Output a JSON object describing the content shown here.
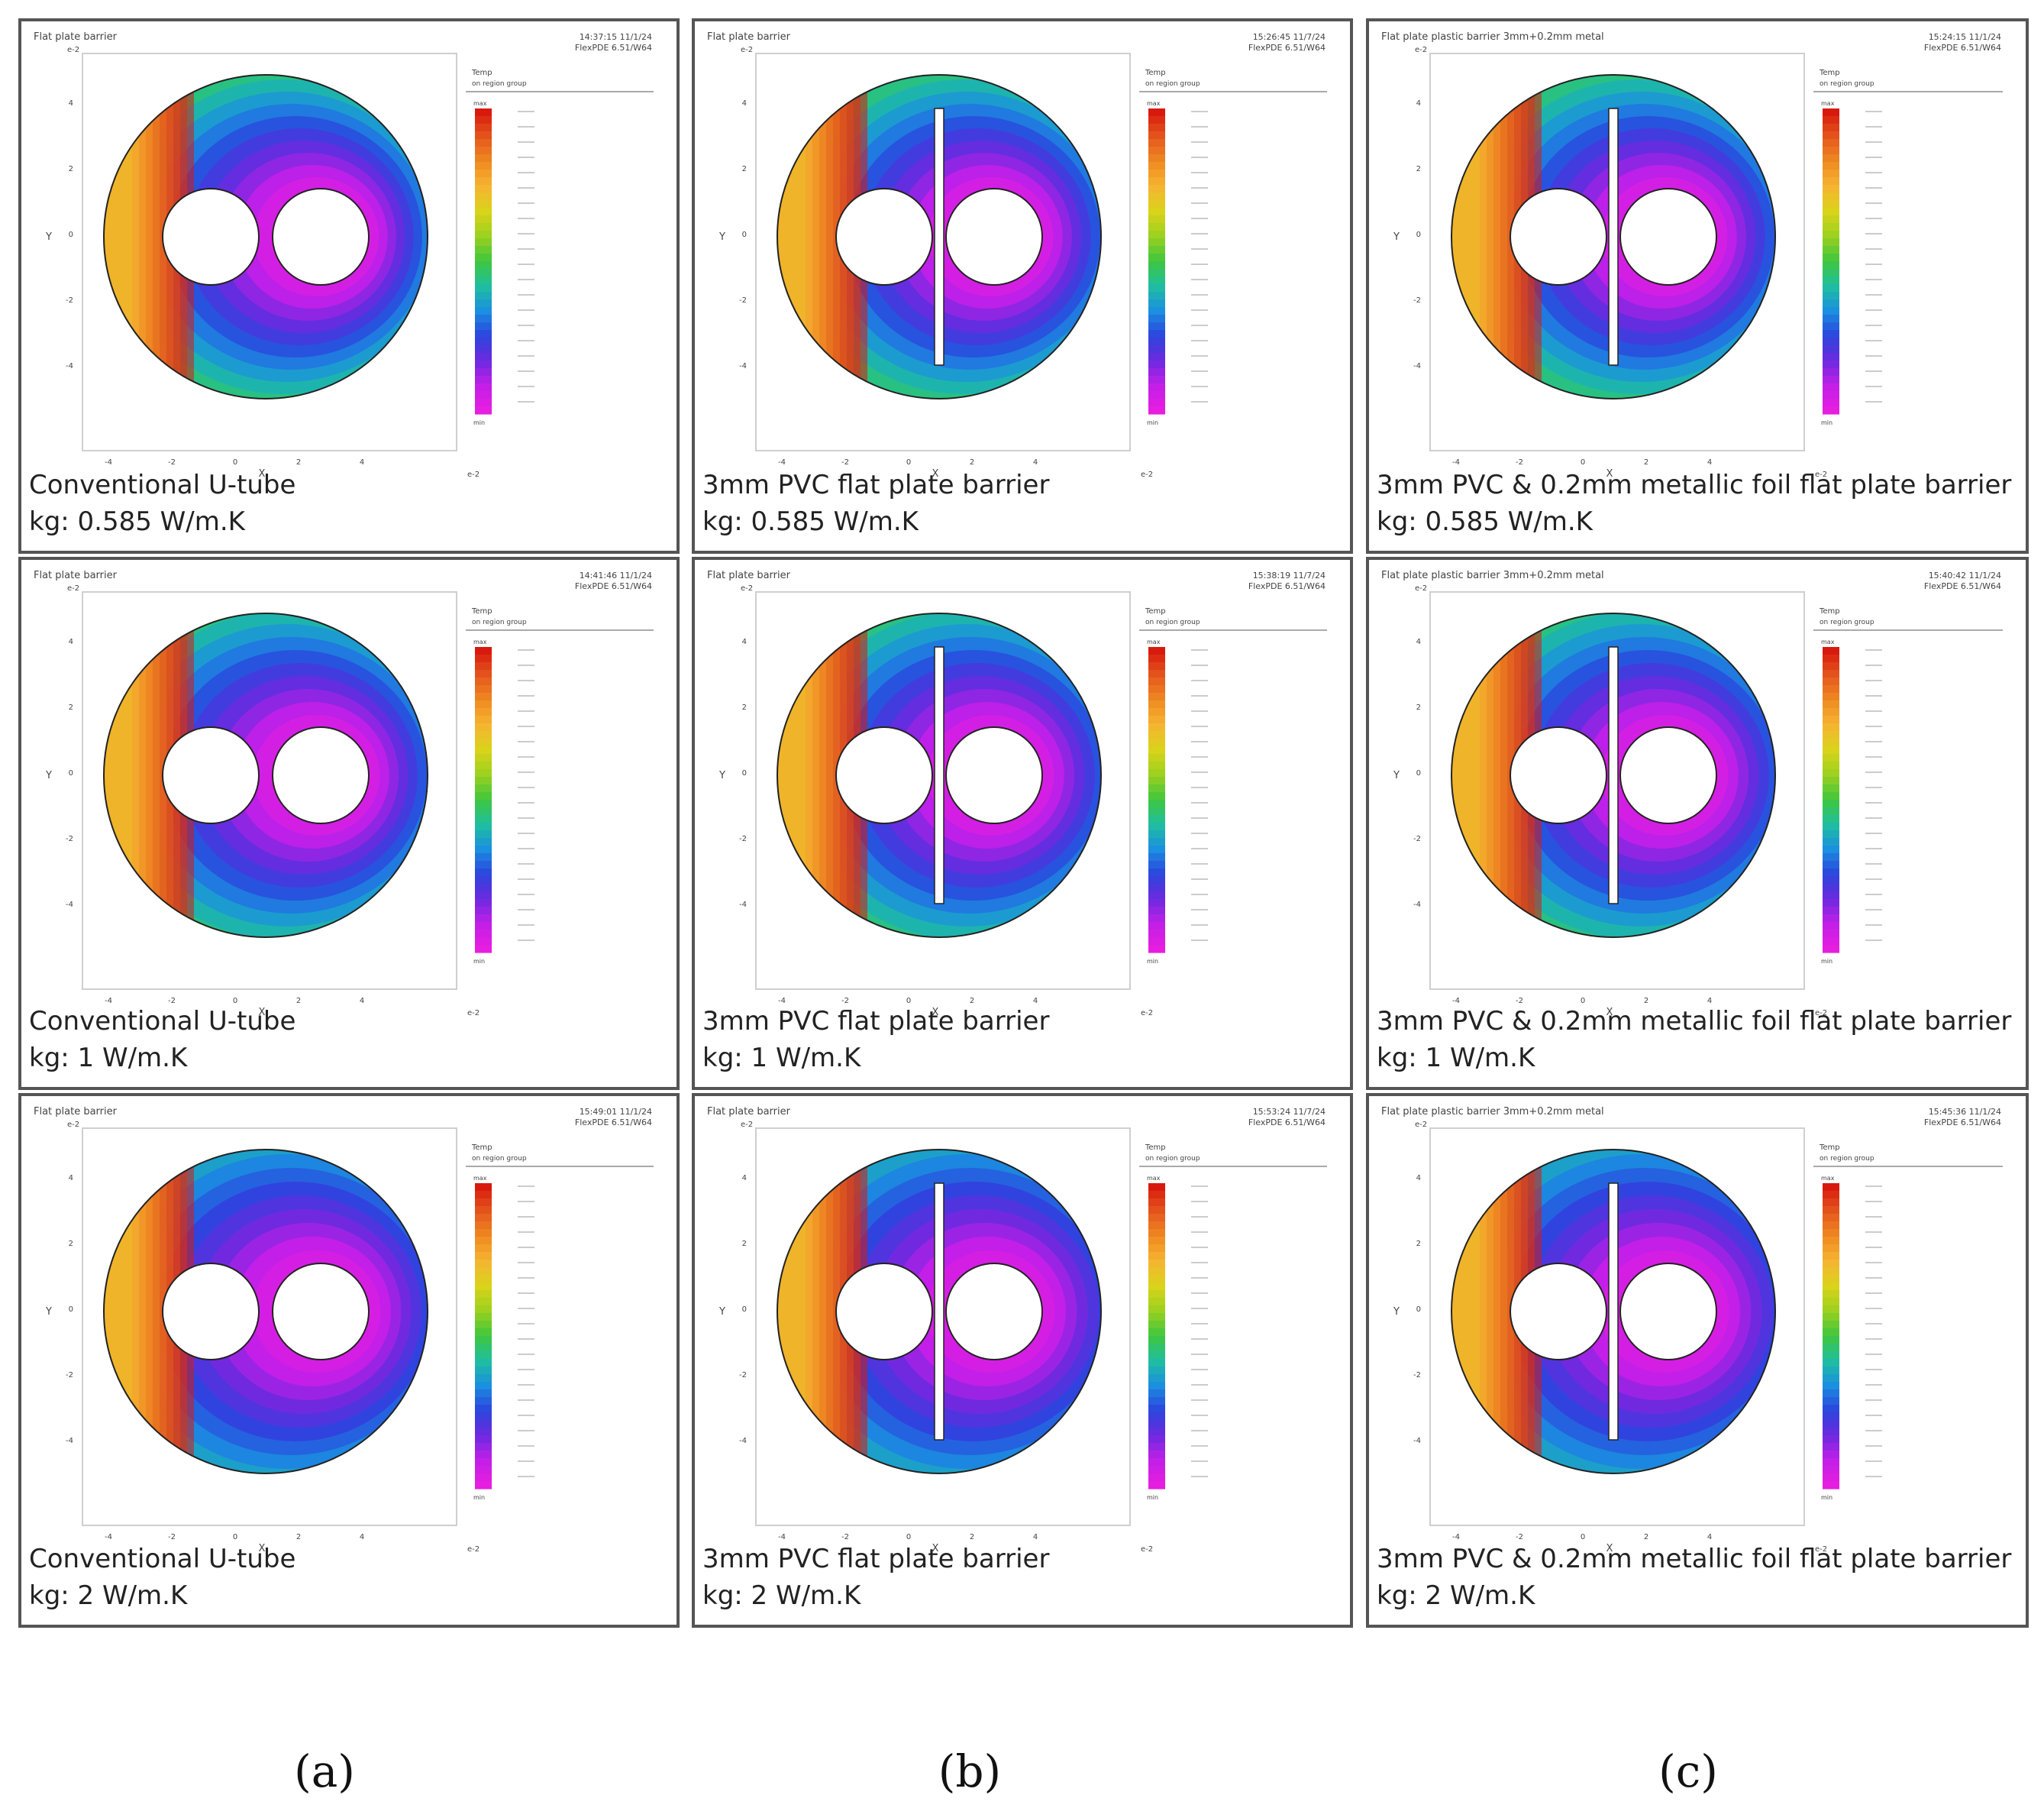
{
  "figure": {
    "column_labels": [
      "(a)",
      "(b)",
      "(c)"
    ],
    "panels": [
      {
        "id": "a1",
        "variant": "utube",
        "plot_title": "Flat plate barrier",
        "timestamp": "14:37:15 11/1/24",
        "software": "FlexPDE 6.51/W64",
        "caption_line1": "Conventional U-tube",
        "caption_line2": "kg: 0.585 W/m.K",
        "k": 0.585
      },
      {
        "id": "b1",
        "variant": "pvc",
        "plot_title": "Flat plate barrier",
        "timestamp": "15:26:45 11/7/24",
        "software": "FlexPDE 6.51/W64",
        "caption_line1": "3mm PVC flat plate barrier",
        "caption_line2": "kg: 0.585 W/m.K",
        "k": 0.585
      },
      {
        "id": "c1",
        "variant": "foil",
        "plot_title": "Flat plate plastic barrier 3mm+0.2mm metal",
        "timestamp": "15:24:15 11/1/24",
        "software": "FlexPDE 6.51/W64",
        "caption_line1": "3mm PVC & 0.2mm metallic foil flat plate barrier",
        "caption_line2": "kg: 0.585 W/m.K",
        "k": 0.585
      },
      {
        "id": "a2",
        "variant": "utube",
        "plot_title": "Flat plate barrier",
        "timestamp": "14:41:46 11/1/24",
        "software": "FlexPDE 6.51/W64",
        "caption_line1": "Conventional U-tube",
        "caption_line2": "kg: 1 W/m.K",
        "k": 1
      },
      {
        "id": "b2",
        "variant": "pvc",
        "plot_title": "Flat plate barrier",
        "timestamp": "15:38:19 11/7/24",
        "software": "FlexPDE 6.51/W64",
        "caption_line1": "3mm PVC flat plate barrier",
        "caption_line2": "kg: 1 W/m.K",
        "k": 1
      },
      {
        "id": "c2",
        "variant": "foil",
        "plot_title": "Flat plate plastic barrier 3mm+0.2mm metal",
        "timestamp": "15:40:42 11/1/24",
        "software": "FlexPDE 6.51/W64",
        "caption_line1": "3mm PVC & 0.2mm metallic foil flat plate barrier",
        "caption_line2": "kg: 1 W/m.K",
        "k": 1
      },
      {
        "id": "a3",
        "variant": "utube",
        "plot_title": "Flat plate barrier",
        "timestamp": "15:49:01 11/1/24",
        "software": "FlexPDE 6.51/W64",
        "caption_line1": "Conventional U-tube",
        "caption_line2": "kg: 2 W/m.K",
        "k": 2
      },
      {
        "id": "b3",
        "variant": "pvc",
        "plot_title": "Flat plate barrier",
        "timestamp": "15:53:24 11/7/24",
        "software": "FlexPDE 6.51/W64",
        "caption_line1": "3mm PVC flat plate barrier",
        "caption_line2": "kg: 2 W/m.K",
        "k": 2
      },
      {
        "id": "c3",
        "variant": "foil",
        "plot_title": "Flat plate plastic barrier 3mm+0.2mm metal",
        "timestamp": "15:45:36 11/1/24",
        "software": "FlexPDE 6.51/W64",
        "caption_line1": "3mm PVC & 0.2mm metallic foil flat plate barrier",
        "caption_line2": "kg: 2 W/m.K",
        "k": 2
      }
    ],
    "plot_common": {
      "x_axis_label": "X",
      "y_axis_label": "Y",
      "axis_scale_label": "e-2",
      "x_ticks": [
        -4,
        -2,
        0,
        2,
        4
      ],
      "y_ticks": [
        4,
        2,
        0,
        -2,
        -4
      ],
      "legend_title": "Temp",
      "legend_subtitle": "on region group",
      "legend_max_label": "max",
      "legend_min_label": "min"
    },
    "colors": {
      "panel_border": "#555555",
      "scale": [
        "#d81a0e",
        "#e5571d",
        "#ef8a22",
        "#f5b531",
        "#d9d31a",
        "#9bd11e",
        "#3fc63d",
        "#1fbfa0",
        "#1b8fe0",
        "#2b45de",
        "#6c2ae0",
        "#c21fe8",
        "#e61ee0"
      ]
    }
  }
}
